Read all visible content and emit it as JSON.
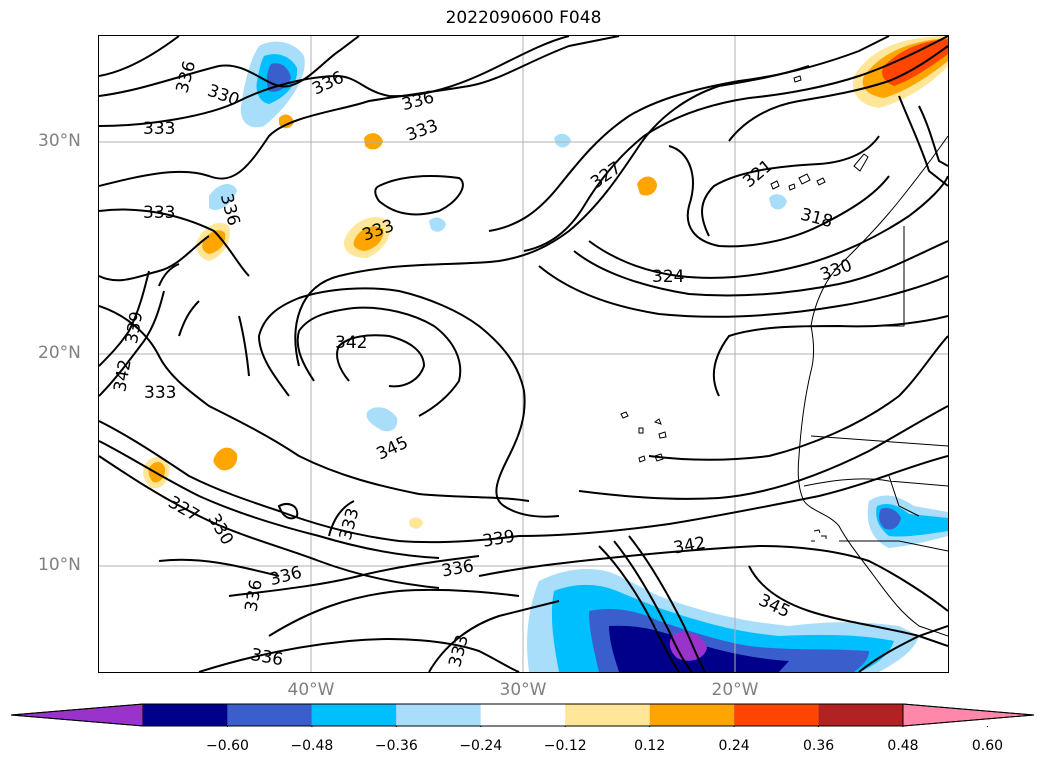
{
  "title": "2022090600 F048",
  "lat_labels": [
    "30°N",
    "20°N",
    "10°N"
  ],
  "lon_labels": [
    "40°W",
    "30°W",
    "20°W"
  ],
  "colorbar": {
    "ticks": [
      "−0.60",
      "−0.48",
      "−0.36",
      "−0.24",
      "−0.12",
      "0.12",
      "0.24",
      "0.36",
      "0.48",
      "0.60"
    ],
    "colors": [
      "#9933cc",
      "#00008b",
      "#3a5fcd",
      "#00bfff",
      "#a8defa",
      "#ffffff",
      "#ffe699",
      "#ffa500",
      "#ff4500",
      "#b22222",
      "#ff88aa"
    ],
    "extend": "both"
  },
  "contour_labels": [
    "336",
    "330",
    "336",
    "333",
    "336",
    "333",
    "333",
    "336",
    "333",
    "327",
    "321",
    "318",
    "324",
    "330",
    "339",
    "342",
    "342",
    "333",
    "345",
    "327",
    "330",
    "333",
    "339",
    "336",
    "336",
    "336",
    "333",
    "342",
    "345",
    "336"
  ],
  "map_style": {
    "contour_color": "#000000",
    "grid_color": "#b0b0b0",
    "coastline_color": "#000000"
  }
}
